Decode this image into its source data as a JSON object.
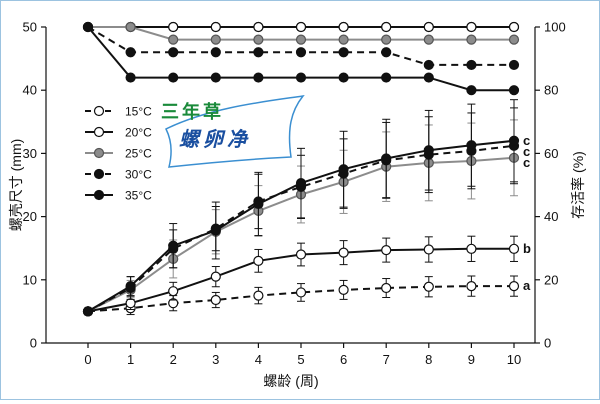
{
  "chart_data": {
    "type": "line",
    "xlabel": "螺龄 (周)",
    "ylabel_left": "螺壳尺寸 (mm)",
    "ylabel_right": "存活率 (%)",
    "x": [
      0,
      1,
      2,
      3,
      4,
      5,
      6,
      7,
      8,
      9,
      10
    ],
    "xticks": [
      "0",
      "1",
      "2",
      "3",
      "4",
      "5",
      "6",
      "7",
      "8",
      "9",
      "10"
    ],
    "ylim_left": [
      0,
      50
    ],
    "yticks_left": [
      "0",
      "10",
      "20",
      "30",
      "40",
      "50"
    ],
    "ylim_right": [
      0,
      100
    ],
    "yticks_right": [
      "0",
      "20",
      "40",
      "60",
      "80",
      "100"
    ],
    "size_series": [
      {
        "name": "15°C",
        "label": "15°C",
        "values": [
          5,
          5.5,
          6.3,
          6.8,
          7.5,
          8,
          8.4,
          8.7,
          8.9,
          9,
          9
        ],
        "err": [
          0.5,
          1,
          1.2,
          1.2,
          1.3,
          1.4,
          1.5,
          1.5,
          1.6,
          1.6,
          1.6
        ],
        "sig": "a"
      },
      {
        "name": "20°C",
        "label": "20°C",
        "values": [
          5,
          6.3,
          8.2,
          10.5,
          13,
          14,
          14.3,
          14.7,
          14.8,
          14.9,
          14.9
        ],
        "err": [
          0.5,
          1,
          1.4,
          1.6,
          1.8,
          1.8,
          1.9,
          1.9,
          2,
          2,
          2
        ],
        "sig": "b"
      },
      {
        "name": "25°C",
        "label": "25°C",
        "values": [
          5,
          8.4,
          13.3,
          17.6,
          20.9,
          23.5,
          25.5,
          27.9,
          28.5,
          28.8,
          29.3
        ],
        "err": [
          0.5,
          1.5,
          3,
          3.5,
          4,
          4.5,
          5,
          5.5,
          6,
          6,
          6
        ],
        "sig": "c"
      },
      {
        "name": "30°C",
        "label": "30°C",
        "values": [
          5,
          8.7,
          14.9,
          18.1,
          22.4,
          24.7,
          26.8,
          28.9,
          29.8,
          30.4,
          31.2
        ],
        "err": [
          0.5,
          1.8,
          3,
          3.5,
          4.3,
          5,
          5.5,
          6,
          6,
          6,
          6
        ],
        "sig": "c"
      },
      {
        "name": "35°C",
        "label": "35°C",
        "values": [
          5,
          9,
          15.4,
          17.8,
          22,
          25.3,
          27.5,
          29.2,
          30.5,
          31.3,
          32
        ],
        "err": [
          0.5,
          1.5,
          3.5,
          4.5,
          5,
          5.5,
          6,
          6.2,
          6.3,
          6.5,
          6.5
        ],
        "sig": "c"
      }
    ],
    "survival_series": [
      {
        "name": "15°C",
        "values": [
          100,
          100,
          100,
          100,
          100,
          100,
          100,
          100,
          100,
          100,
          100
        ]
      },
      {
        "name": "20°C",
        "values": [
          100,
          100,
          100,
          100,
          100,
          100,
          100,
          100,
          100,
          100,
          100
        ]
      },
      {
        "name": "25°C",
        "values": [
          100,
          100,
          96,
          96,
          96,
          96,
          96,
          96,
          96,
          96,
          96
        ]
      },
      {
        "name": "30°C",
        "values": [
          100,
          92,
          92,
          92,
          92,
          92,
          92,
          92,
          88,
          88,
          88
        ]
      },
      {
        "name": "35°C",
        "values": [
          100,
          84,
          84,
          84,
          84,
          84,
          84,
          84,
          84,
          80,
          80
        ]
      }
    ],
    "styles": {
      "15°C": {
        "marker_fill": "#ffffff",
        "line_color": "#111111",
        "dashed": true
      },
      "20°C": {
        "marker_fill": "#ffffff",
        "line_color": "#111111",
        "dashed": false
      },
      "25°C": {
        "marker_fill": "#8c8c8c",
        "line_color": "#8c8c8c",
        "dashed": false
      },
      "30°C": {
        "marker_fill": "#111111",
        "line_color": "#111111",
        "dashed": true
      },
      "35°C": {
        "marker_fill": "#111111",
        "line_color": "#111111",
        "dashed": false
      }
    },
    "legend": [
      "15°C",
      "20°C",
      "25°C",
      "30°C",
      "35°C"
    ]
  },
  "watermark": {
    "line1": "三年草",
    "line2": "螺卵净",
    "color_line1": "#1a8a3a",
    "color_line2": "#1a4fa0"
  }
}
